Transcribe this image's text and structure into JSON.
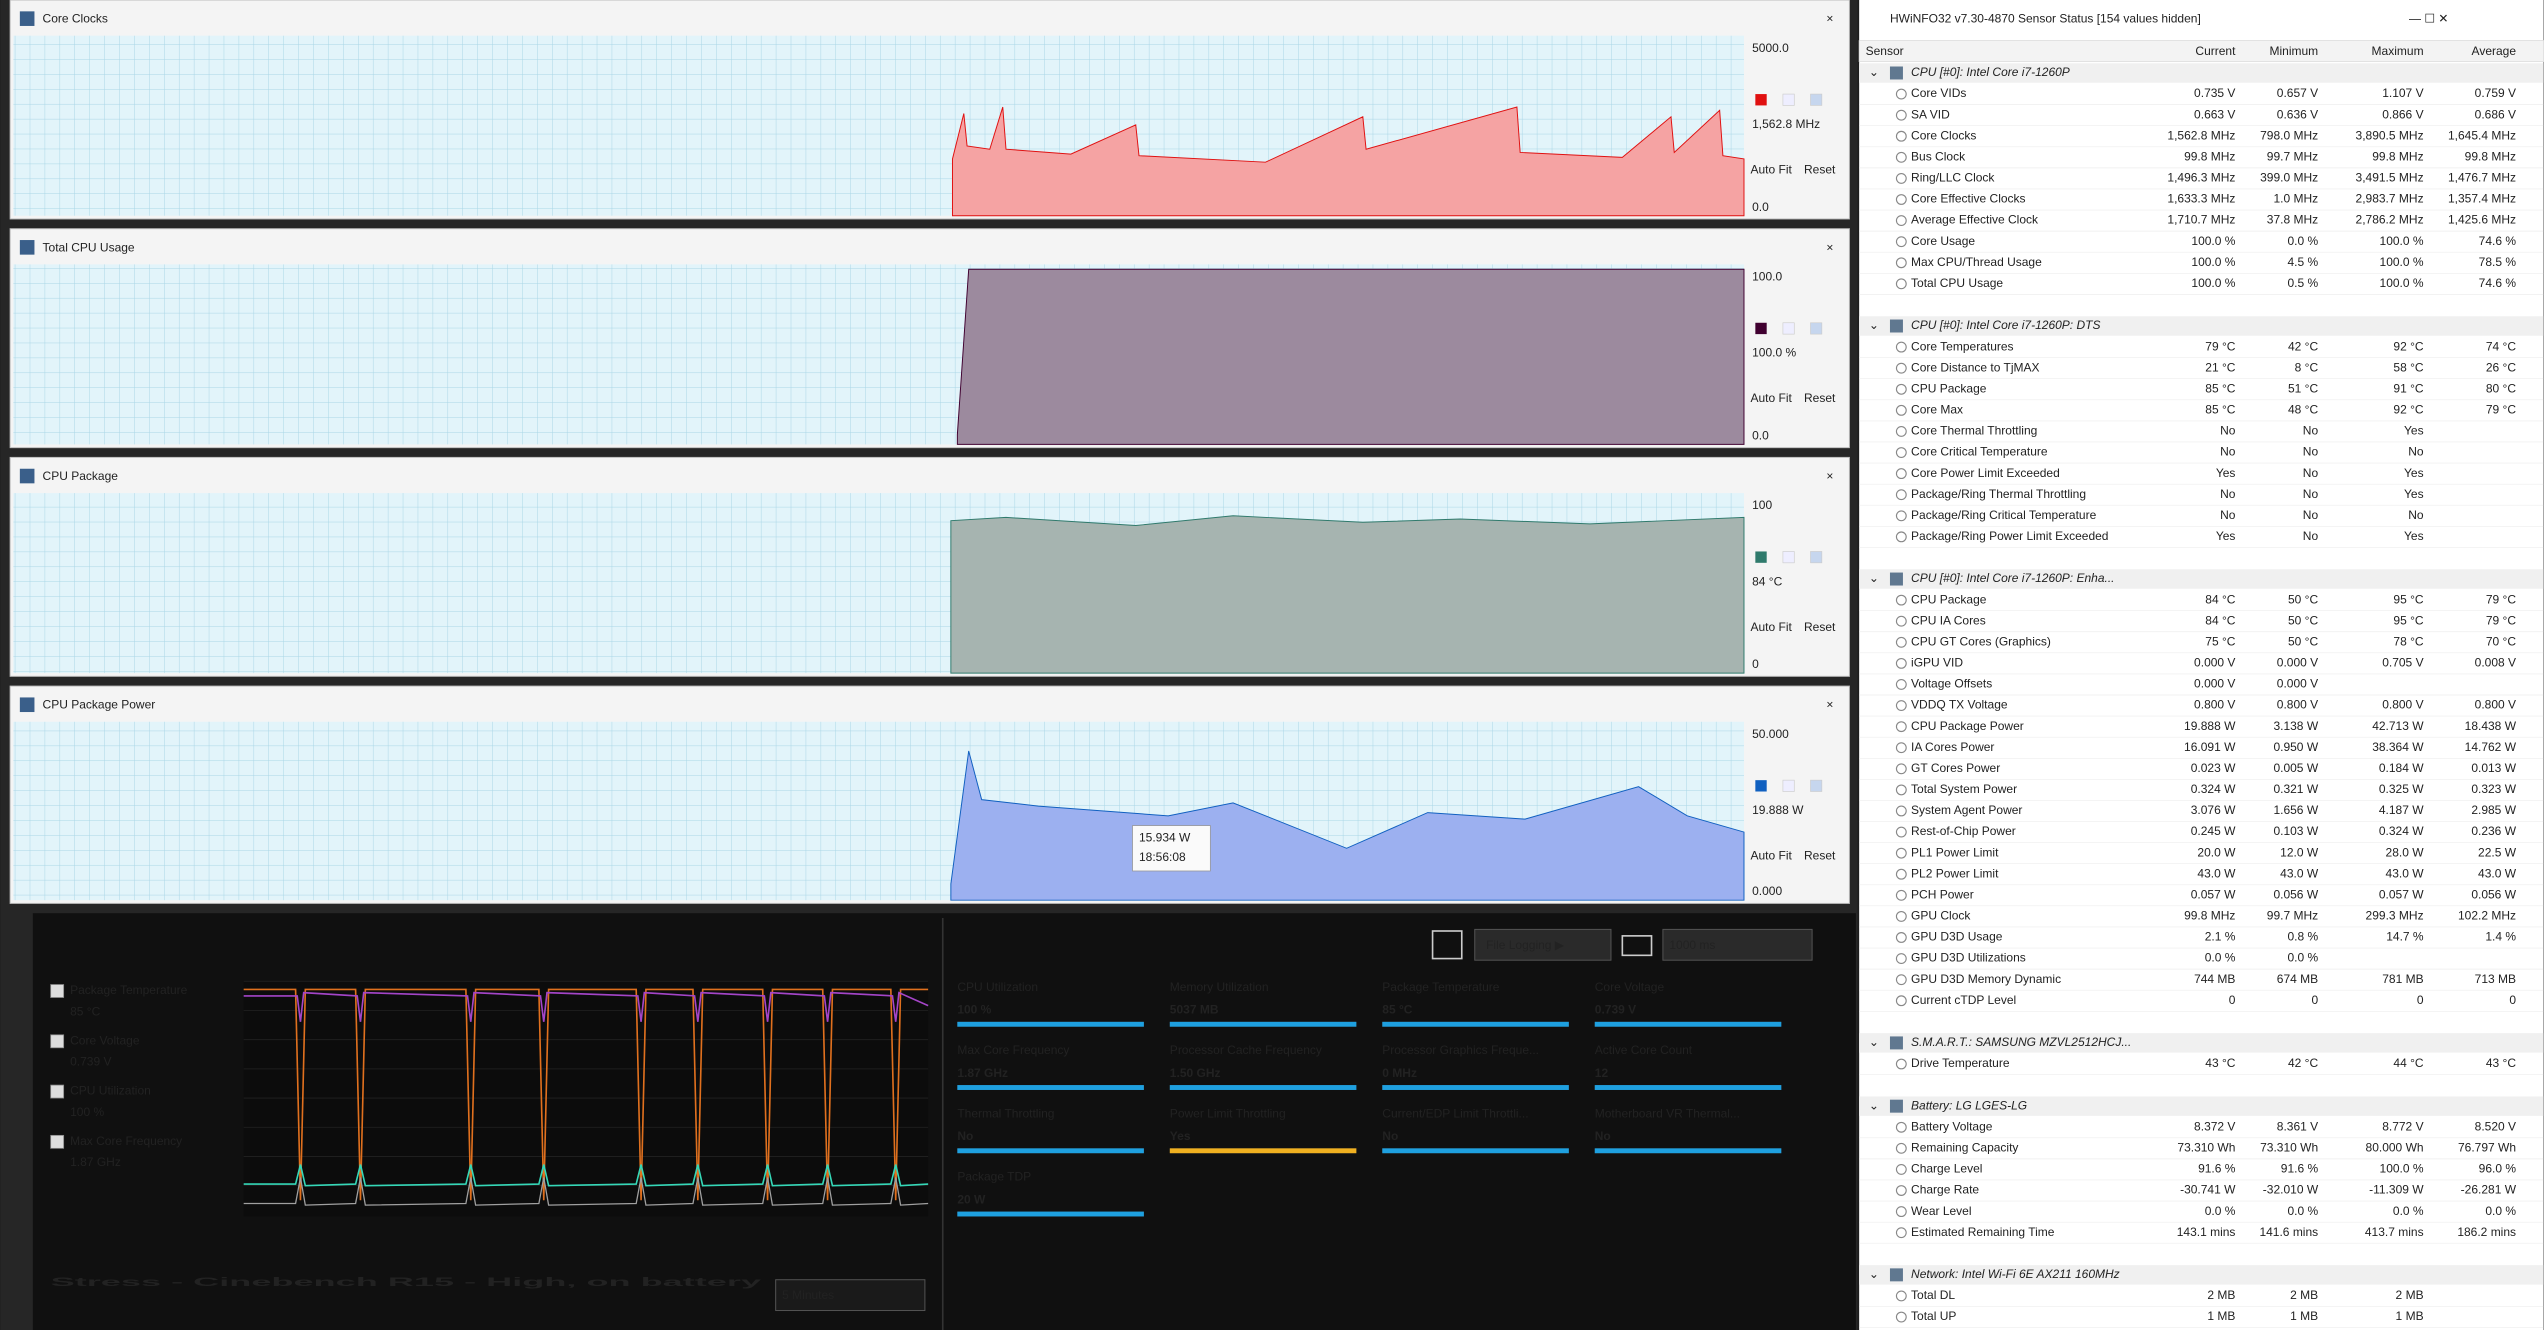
{
  "graph_windows": [
    {
      "title": "Core Clocks",
      "top_label": "5000.0",
      "current_label": "1,562.8 MHz",
      "bottom_label": "0.0",
      "color": "#e01010",
      "fill": "#f5a3a3",
      "auto_fit": "Auto Fit",
      "reset": "Reset"
    },
    {
      "title": "Total CPU Usage",
      "top_label": "100.0",
      "current_label": "100.0 %",
      "bottom_label": "0.0",
      "color": "#400030",
      "fill": "#9c8a9e",
      "auto_fit": "Auto Fit",
      "reset": "Reset"
    },
    {
      "title": "CPU Package",
      "top_label": "100",
      "current_label": "84 °C",
      "bottom_label": "0",
      "color": "#2f7a6c",
      "fill": "#a6b4b0",
      "auto_fit": "Auto Fit",
      "reset": "Reset"
    },
    {
      "title": "CPU Package Power",
      "top_label": "50.000",
      "current_label": "19.888 W",
      "bottom_label": "0.000",
      "color": "#1060c0",
      "fill": "#9cb0f0",
      "auto_fit": "Auto Fit",
      "reset": "Reset"
    }
  ],
  "tooltip": {
    "value": "15.934 W",
    "time": "18:56:08"
  },
  "overlay": {
    "title": "Stress - Cinebench R15 - High, on battery",
    "duration": "5 Minutes",
    "file_logging": "File Logging ▶",
    "interval": "1000 ms",
    "legend": [
      {
        "label": "Package Temperature",
        "value": "85 °C",
        "color": "#a545c8"
      },
      {
        "label": "Core Voltage",
        "value": "0.739 V",
        "color": "#35d8b8"
      },
      {
        "label": "CPU Utilization",
        "value": "100 %",
        "color": "#e0701e"
      },
      {
        "label": "Max Core Frequency",
        "value": "1.87 GHz",
        "color": "#a0a0a0"
      }
    ],
    "tiles": [
      {
        "label": "CPU Utilization",
        "value": "100 %",
        "color": "#1ea0e0"
      },
      {
        "label": "Memory Utilization",
        "value": "5037  MB",
        "color": "#1ea0e0"
      },
      {
        "label": "Package Temperature",
        "value": "85 °C",
        "color": "#1ea0e0"
      },
      {
        "label": "Core Voltage",
        "value": "0.739 V",
        "color": "#1ea0e0"
      },
      {
        "label": "Max Core Frequency",
        "value": "1.87 GHz",
        "color": "#1ea0e0"
      },
      {
        "label": "Processor Cache Frequency",
        "value": "1.50 GHz",
        "color": "#1ea0e0"
      },
      {
        "label": "Processor Graphics Freque...",
        "value": "0 MHz",
        "color": "#1ea0e0"
      },
      {
        "label": "Active Core Count",
        "value": "12",
        "color": "#1ea0e0"
      },
      {
        "label": "Thermal Throttling",
        "value": "No",
        "color": "#1ea0e0"
      },
      {
        "label": "Power Limit Throttling",
        "value": "Yes",
        "color": "#f0b020"
      },
      {
        "label": "Current/EDP Limit Throttli...",
        "value": "No",
        "color": "#1ea0e0"
      },
      {
        "label": "Motherboard VR Thermal...",
        "value": "No",
        "color": "#1ea0e0"
      },
      {
        "label": "Package TDP",
        "value": "20 W",
        "color": "#1ea0e0"
      }
    ]
  },
  "hwinfo": {
    "title": "HWiNFO32 v7.30-4870 Sensor Status [154 values hidden]",
    "columns": [
      "Sensor",
      "Current",
      "Minimum",
      "Maximum",
      "Average"
    ],
    "groups": [
      {
        "name": "CPU [#0]: Intel Core i7-1260P",
        "rows": [
          [
            "Core VIDs",
            "0.735 V",
            "0.657 V",
            "1.107 V",
            "0.759 V"
          ],
          [
            "SA VID",
            "0.663 V",
            "0.636 V",
            "0.866 V",
            "0.686 V"
          ],
          [
            "Core Clocks",
            "1,562.8 MHz",
            "798.0 MHz",
            "3,890.5 MHz",
            "1,645.4 MHz"
          ],
          [
            "Bus Clock",
            "99.8 MHz",
            "99.7 MHz",
            "99.8 MHz",
            "99.8 MHz"
          ],
          [
            "Ring/LLC Clock",
            "1,496.3 MHz",
            "399.0 MHz",
            "3,491.5 MHz",
            "1,476.7 MHz"
          ],
          [
            "Core Effective Clocks",
            "1,633.3 MHz",
            "1.0 MHz",
            "2,983.7 MHz",
            "1,357.4 MHz"
          ],
          [
            "Average Effective Clock",
            "1,710.7 MHz",
            "37.8 MHz",
            "2,786.2 MHz",
            "1,425.6 MHz"
          ],
          [
            "Core Usage",
            "100.0 %",
            "0.0 %",
            "100.0 %",
            "74.6 %"
          ],
          [
            "Max CPU/Thread Usage",
            "100.0 %",
            "4.5 %",
            "100.0 %",
            "78.5 %"
          ],
          [
            "Total CPU Usage",
            "100.0 %",
            "0.5 %",
            "100.0 %",
            "74.6 %"
          ]
        ]
      },
      {
        "name": "CPU [#0]: Intel Core i7-1260P: DTS",
        "rows": [
          [
            "Core Temperatures",
            "79 °C",
            "42 °C",
            "92 °C",
            "74 °C"
          ],
          [
            "Core Distance to TjMAX",
            "21 °C",
            "8 °C",
            "58 °C",
            "26 °C"
          ],
          [
            "CPU Package",
            "85 °C",
            "51 °C",
            "91 °C",
            "80 °C"
          ],
          [
            "Core Max",
            "85 °C",
            "48 °C",
            "92 °C",
            "79 °C"
          ],
          [
            "Core Thermal Throttling",
            "No",
            "No",
            "Yes"
          ],
          [
            "Core Critical Temperature",
            "No",
            "No",
            "No"
          ],
          [
            "Core Power Limit Exceeded",
            "Yes",
            "No",
            "Yes"
          ],
          [
            "Package/Ring Thermal Throttling",
            "No",
            "No",
            "Yes"
          ],
          [
            "Package/Ring Critical Temperature",
            "No",
            "No",
            "No"
          ],
          [
            "Package/Ring Power Limit Exceeded",
            "Yes",
            "No",
            "Yes"
          ]
        ]
      },
      {
        "name": "CPU [#0]: Intel Core i7-1260P: Enha...",
        "rows": [
          [
            "CPU Package",
            "84 °C",
            "50 °C",
            "95 °C",
            "79 °C"
          ],
          [
            "CPU IA Cores",
            "84 °C",
            "50 °C",
            "95 °C",
            "79 °C"
          ],
          [
            "CPU GT Cores (Graphics)",
            "75 °C",
            "50 °C",
            "78 °C",
            "70 °C"
          ],
          [
            "iGPU VID",
            "0.000 V",
            "0.000 V",
            "0.705 V",
            "0.008 V"
          ],
          [
            "Voltage Offsets",
            "0.000 V",
            "0.000 V"
          ],
          [
            "VDDQ TX Voltage",
            "0.800 V",
            "0.800 V",
            "0.800 V",
            "0.800 V"
          ],
          [
            "CPU Package Power",
            "19.888 W",
            "3.138 W",
            "42.713 W",
            "18.438 W"
          ],
          [
            "IA Cores Power",
            "16.091 W",
            "0.950 W",
            "38.364 W",
            "14.762 W"
          ],
          [
            "GT Cores Power",
            "0.023 W",
            "0.005 W",
            "0.184 W",
            "0.013 W"
          ],
          [
            "Total System Power",
            "0.324 W",
            "0.321 W",
            "0.325 W",
            "0.323 W"
          ],
          [
            "System Agent Power",
            "3.076 W",
            "1.656 W",
            "4.187 W",
            "2.985 W"
          ],
          [
            "Rest-of-Chip Power",
            "0.245 W",
            "0.103 W",
            "0.324 W",
            "0.236 W"
          ],
          [
            "PL1 Power Limit",
            "20.0 W",
            "12.0 W",
            "28.0 W",
            "22.5 W"
          ],
          [
            "PL2 Power Limit",
            "43.0 W",
            "43.0 W",
            "43.0 W",
            "43.0 W"
          ],
          [
            "PCH Power",
            "0.057 W",
            "0.056 W",
            "0.057 W",
            "0.056 W"
          ],
          [
            "GPU Clock",
            "99.8 MHz",
            "99.7 MHz",
            "299.3 MHz",
            "102.2 MHz"
          ],
          [
            "GPU D3D Usage",
            "2.1 %",
            "0.8 %",
            "14.7 %",
            "1.4 %"
          ],
          [
            "GPU D3D Utilizations",
            "0.0 %",
            "0.0 %"
          ],
          [
            "GPU D3D Memory Dynamic",
            "744 MB",
            "674 MB",
            "781 MB",
            "713 MB"
          ],
          [
            "Current cTDP Level",
            "0",
            "0",
            "0",
            "0"
          ]
        ]
      },
      {
        "name": "S.M.A.R.T.: SAMSUNG MZVL2512HCJ...",
        "rows": [
          [
            "Drive Temperature",
            "43 °C",
            "42 °C",
            "44 °C",
            "43 °C"
          ]
        ]
      },
      {
        "name": "Battery: LG LGES-LG",
        "rows": [
          [
            "Battery Voltage",
            "8.372 V",
            "8.361 V",
            "8.772 V",
            "8.520 V"
          ],
          [
            "Remaining Capacity",
            "73.310 Wh",
            "73.310 Wh",
            "80.000 Wh",
            "76.797 Wh"
          ],
          [
            "Charge Level",
            "91.6 %",
            "91.6 %",
            "100.0 %",
            "96.0 %"
          ],
          [
            "Charge Rate",
            "-30.741 W",
            "-32.010 W",
            "-11.309 W",
            "-26.281 W"
          ],
          [
            "Wear Level",
            "0.0 %",
            "0.0 %",
            "0.0 %",
            "0.0 %"
          ],
          [
            "Estimated Remaining Time",
            "143.1 mins",
            "141.6 mins",
            "413.7 mins",
            "186.2 mins"
          ]
        ]
      },
      {
        "name": "Network: Intel Wi-Fi 6E AX211 160MHz",
        "rows": [
          [
            "Total DL",
            "2 MB",
            "2 MB",
            "2 MB"
          ],
          [
            "Total UP",
            "1 MB",
            "1 MB",
            "1 MB"
          ]
        ]
      }
    ]
  }
}
